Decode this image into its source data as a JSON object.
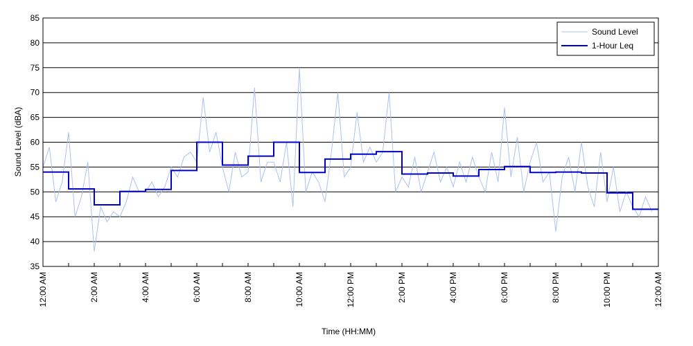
{
  "chart_data": {
    "type": "line",
    "xlabel": "Time (HH:MM)",
    "ylabel": "Sound Level (dBA)",
    "xlim": [
      0,
      24
    ],
    "ylim": [
      35,
      85
    ],
    "xticks": [
      {
        "value": 0,
        "label": "12:00 AM"
      },
      {
        "value": 2,
        "label": "2:00 AM"
      },
      {
        "value": 4,
        "label": "4:00 AM"
      },
      {
        "value": 6,
        "label": "6:00 AM"
      },
      {
        "value": 8,
        "label": "8:00 AM"
      },
      {
        "value": 10,
        "label": "10:00 AM"
      },
      {
        "value": 12,
        "label": "12:00 PM"
      },
      {
        "value": 14,
        "label": "2:00 PM"
      },
      {
        "value": 16,
        "label": "4:00 PM"
      },
      {
        "value": 18,
        "label": "6:00 PM"
      },
      {
        "value": 20,
        "label": "8:00 PM"
      },
      {
        "value": 22,
        "label": "10:00 PM"
      },
      {
        "value": 24,
        "label": "12:00 AM"
      }
    ],
    "yticks": [
      35,
      40,
      45,
      50,
      55,
      60,
      65,
      70,
      75,
      80,
      85
    ],
    "grid": true,
    "legend": "upper right",
    "series": [
      {
        "name": "Sound Level",
        "color": "#a9c1f2",
        "step": false,
        "x": [
          0,
          0.25,
          0.5,
          0.75,
          1,
          1.25,
          1.5,
          1.75,
          2,
          2.25,
          2.5,
          2.75,
          3,
          3.25,
          3.5,
          3.75,
          4,
          4.25,
          4.5,
          4.75,
          5,
          5.25,
          5.5,
          5.75,
          6,
          6.25,
          6.5,
          6.75,
          7,
          7.25,
          7.5,
          7.75,
          8,
          8.25,
          8.5,
          8.75,
          9,
          9.25,
          9.5,
          9.75,
          10,
          10.25,
          10.5,
          10.75,
          11,
          11.25,
          11.5,
          11.75,
          12,
          12.25,
          12.5,
          12.75,
          13,
          13.25,
          13.5,
          13.75,
          14,
          14.25,
          14.5,
          14.75,
          15,
          15.25,
          15.5,
          15.75,
          16,
          16.25,
          16.5,
          16.75,
          17,
          17.25,
          17.5,
          17.75,
          18,
          18.25,
          18.5,
          18.75,
          19,
          19.25,
          19.5,
          19.75,
          20,
          20.25,
          20.5,
          20.75,
          21,
          21.25,
          21.5,
          21.75,
          22,
          22.25,
          22.5,
          22.75,
          23,
          23.25,
          23.5,
          23.75
        ],
        "values": [
          55,
          59,
          48,
          52,
          62,
          45,
          49,
          56,
          38,
          47,
          44,
          46,
          45,
          48,
          53,
          50,
          50,
          52,
          49,
          51,
          55,
          53,
          57,
          58,
          56,
          69,
          58,
          62,
          55,
          50,
          58,
          53,
          54,
          71,
          52,
          56,
          56,
          52,
          60,
          47,
          75,
          50,
          54,
          52,
          48,
          58,
          70,
          53,
          55,
          66,
          56,
          59,
          56,
          58,
          70,
          50,
          53,
          51,
          57,
          50,
          54,
          58,
          52,
          55,
          51,
          56,
          52,
          57,
          53,
          50,
          58,
          52,
          67,
          53,
          61,
          50,
          56,
          60,
          52,
          54,
          42,
          53,
          57,
          50,
          60,
          51,
          47,
          58,
          48,
          55,
          46,
          50,
          47,
          45,
          49,
          46
        ]
      },
      {
        "name": "1-Hour Leq",
        "color": "#0000cc",
        "step": true,
        "x": [
          0,
          1,
          2,
          3,
          4,
          5,
          6,
          7,
          8,
          9,
          10,
          11,
          12,
          13,
          14,
          15,
          16,
          17,
          18,
          19,
          20,
          21,
          22,
          23
        ],
        "values": [
          54,
          50.6,
          47.4,
          50.1,
          50.5,
          54.3,
          60,
          55.4,
          57.2,
          60,
          53.9,
          56.6,
          57.6,
          58.1,
          53.6,
          53.8,
          53.2,
          54.5,
          55.1,
          53.9,
          54,
          53.8,
          49.8,
          46.5
        ]
      }
    ]
  }
}
